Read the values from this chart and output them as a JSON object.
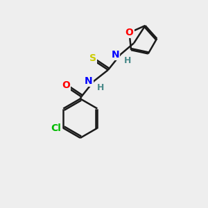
{
  "bg_color": "#eeeeee",
  "bond_color": "#1a1a1a",
  "line_width": 1.8,
  "atom_colors": {
    "O": "#ff0000",
    "N": "#0000ff",
    "S": "#cccc00",
    "Cl": "#00bb00",
    "H": "#4a8a8a",
    "C": "#1a1a1a"
  },
  "font_size": 10
}
